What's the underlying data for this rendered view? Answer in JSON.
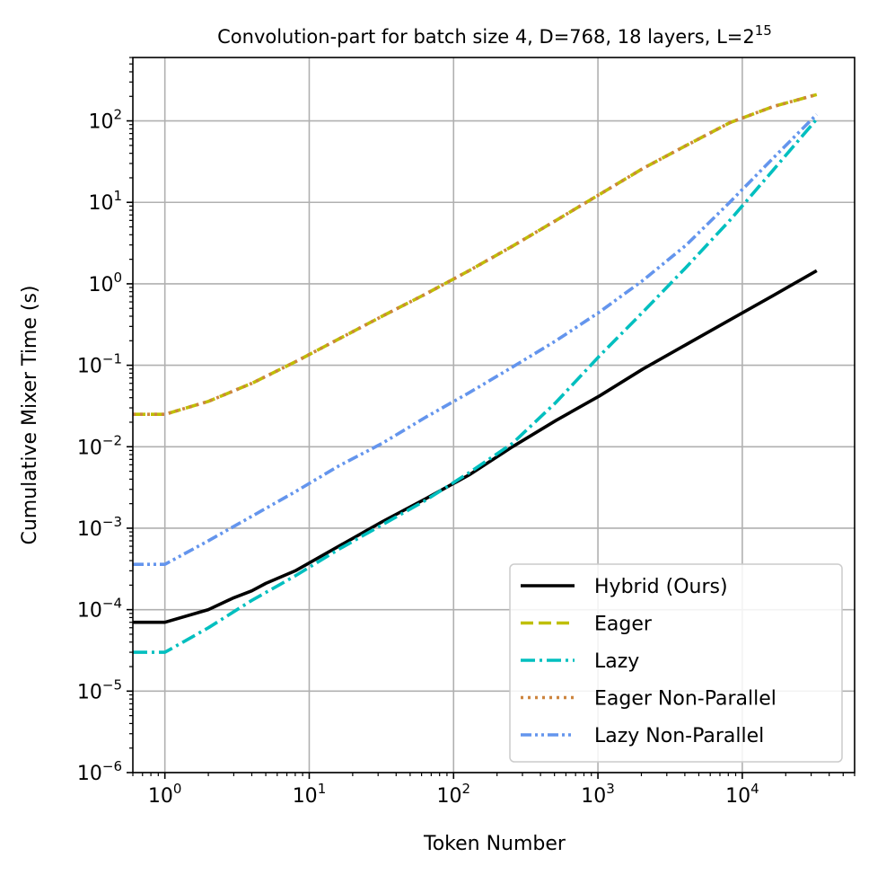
{
  "chart_data": {
    "type": "line",
    "title": {
      "main": "Convolution-part for batch size 4, D=768, 18 layers, L=2",
      "superscript": "15"
    },
    "xlabel": "Token Number",
    "ylabel": "Cumulative Mixer Time (s)",
    "xscale": "log",
    "yscale": "log",
    "xlim": [
      0.6,
      60000
    ],
    "ylim": [
      1e-06,
      600
    ],
    "grid": true,
    "legend_position": "lower-right",
    "x_ticks": [
      {
        "base": "10",
        "exp": "0",
        "value": 1
      },
      {
        "base": "10",
        "exp": "1",
        "value": 10
      },
      {
        "base": "10",
        "exp": "2",
        "value": 100
      },
      {
        "base": "10",
        "exp": "3",
        "value": 1000
      },
      {
        "base": "10",
        "exp": "4",
        "value": 10000
      }
    ],
    "y_ticks": [
      {
        "base": "10",
        "exp": "−6",
        "value": 1e-06
      },
      {
        "base": "10",
        "exp": "−5",
        "value": 1e-05
      },
      {
        "base": "10",
        "exp": "−4",
        "value": 0.0001
      },
      {
        "base": "10",
        "exp": "−3",
        "value": 0.001
      },
      {
        "base": "10",
        "exp": "−2",
        "value": 0.01
      },
      {
        "base": "10",
        "exp": "−1",
        "value": 0.1
      },
      {
        "base": "10",
        "exp": "0",
        "value": 1
      },
      {
        "base": "10",
        "exp": "1",
        "value": 10
      },
      {
        "base": "10",
        "exp": "2",
        "value": 100
      }
    ],
    "series": [
      {
        "name": "Hybrid (Ours)",
        "color": "#000000",
        "style": "solid",
        "x": [
          0.6,
          1,
          2,
          3,
          4,
          5,
          8,
          16,
          32,
          64,
          128,
          256,
          512,
          1024,
          2048,
          4096,
          8192,
          16384,
          32768
        ],
        "y": [
          7e-05,
          7e-05,
          0.0001,
          0.00014,
          0.00017,
          0.00021,
          0.0003,
          0.0006,
          0.0012,
          0.0023,
          0.0045,
          0.01,
          0.021,
          0.042,
          0.09,
          0.18,
          0.36,
          0.72,
          1.45
        ]
      },
      {
        "name": "Eager",
        "color": "#bfbf00",
        "style": "dashed",
        "x": [
          0.6,
          1,
          2,
          4,
          8,
          16,
          32,
          64,
          128,
          256,
          512,
          1024,
          2048,
          4096,
          8192,
          16384,
          32768
        ],
        "y": [
          0.025,
          0.025,
          0.036,
          0.06,
          0.11,
          0.21,
          0.4,
          0.75,
          1.45,
          2.9,
          6.0,
          12.5,
          26,
          50,
          95,
          150,
          210
        ]
      },
      {
        "name": "Lazy",
        "color": "#00bfbf",
        "style": "dashdot",
        "x": [
          0.6,
          1,
          2,
          4,
          8,
          16,
          32,
          64,
          128,
          256,
          512,
          1024,
          2048,
          4096,
          8192,
          16384,
          32768
        ],
        "y": [
          3e-05,
          3e-05,
          6e-05,
          0.00013,
          0.00026,
          0.00055,
          0.0011,
          0.0022,
          0.0048,
          0.011,
          0.035,
          0.13,
          0.45,
          1.6,
          6.0,
          25,
          105
        ]
      },
      {
        "name": "Eager Non-Parallel",
        "color": "#cd853f",
        "style": "dotted",
        "x": [
          0.6,
          1,
          2,
          4,
          8,
          16,
          32,
          64,
          128,
          256,
          512,
          1024,
          2048,
          4096,
          8192,
          16384,
          32768
        ],
        "y": [
          0.025,
          0.025,
          0.036,
          0.06,
          0.11,
          0.21,
          0.4,
          0.75,
          1.45,
          2.9,
          6.0,
          12.5,
          26,
          50,
          95,
          150,
          210
        ]
      },
      {
        "name": "Lazy Non-Parallel",
        "color": "#6495ed",
        "style": "dashdotdot",
        "x": [
          0.6,
          1,
          2,
          4,
          8,
          16,
          32,
          64,
          128,
          256,
          512,
          1024,
          2048,
          4096,
          8192,
          16384,
          32768
        ],
        "y": [
          0.00036,
          0.00036,
          0.0007,
          0.0014,
          0.0028,
          0.0058,
          0.011,
          0.023,
          0.046,
          0.095,
          0.2,
          0.45,
          1.1,
          3.0,
          10,
          35,
          120
        ]
      }
    ]
  }
}
